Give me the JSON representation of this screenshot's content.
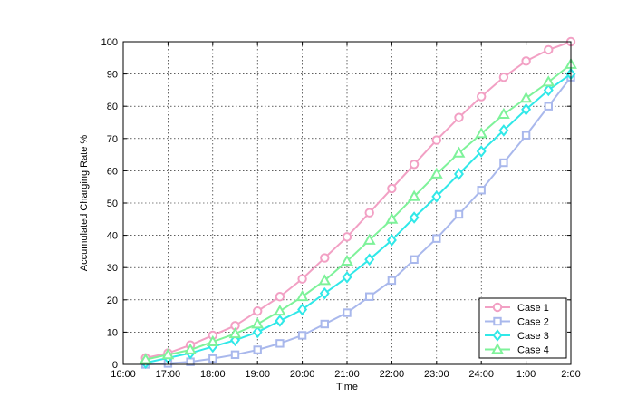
{
  "chart_data": {
    "type": "line",
    "xlabel": "Time",
    "ylabel": "Accumulated Charging Rate %",
    "x_tick_labels": [
      "16:00",
      "17:00",
      "18:00",
      "19:00",
      "20:00",
      "21:00",
      "22:00",
      "23:00",
      "24:00",
      "1:00",
      "2:00"
    ],
    "xlim": [
      16,
      26
    ],
    "ylim": [
      0,
      100
    ],
    "y_ticks": [
      0,
      10,
      20,
      30,
      40,
      50,
      60,
      70,
      80,
      90,
      100
    ],
    "grid": true,
    "legend_position": "bottom-right",
    "x": [
      16.5,
      17,
      17.5,
      18,
      18.5,
      19,
      19.5,
      20,
      20.5,
      21,
      21.5,
      22,
      22.5,
      23,
      23.5,
      24,
      24.5,
      25,
      25.5,
      26
    ],
    "series": [
      {
        "name": "Case 1",
        "color": "#f2a0c4",
        "marker": "circle",
        "values": [
          2,
          3.5,
          6,
          9,
          12,
          16.5,
          21,
          26.5,
          33,
          39.5,
          47,
          54.5,
          62,
          69.5,
          76.5,
          83,
          89,
          94,
          97.5,
          100
        ]
      },
      {
        "name": "Case 2",
        "color": "#a9b8ec",
        "marker": "square",
        "values": [
          0,
          0.3,
          0.8,
          1.8,
          3,
          4.5,
          6.5,
          9,
          12.5,
          16,
          21,
          26,
          32.5,
          39,
          46.5,
          54,
          62.5,
          71,
          80,
          89
        ]
      },
      {
        "name": "Case 3",
        "color": "#30e8e8",
        "marker": "diamond",
        "values": [
          0.5,
          2,
          3.5,
          5.5,
          7.5,
          10,
          13.5,
          17,
          22,
          27,
          32.5,
          38.5,
          45.5,
          52,
          59,
          66,
          72.5,
          79,
          85,
          90
        ]
      },
      {
        "name": "Case 4",
        "color": "#7ef29a",
        "marker": "triangle",
        "values": [
          1.5,
          3,
          4.5,
          7,
          9.5,
          12.5,
          16.5,
          21,
          26,
          32,
          38.5,
          45,
          52,
          59,
          65.5,
          71.5,
          77.5,
          82.5,
          87.5,
          93
        ]
      }
    ]
  }
}
